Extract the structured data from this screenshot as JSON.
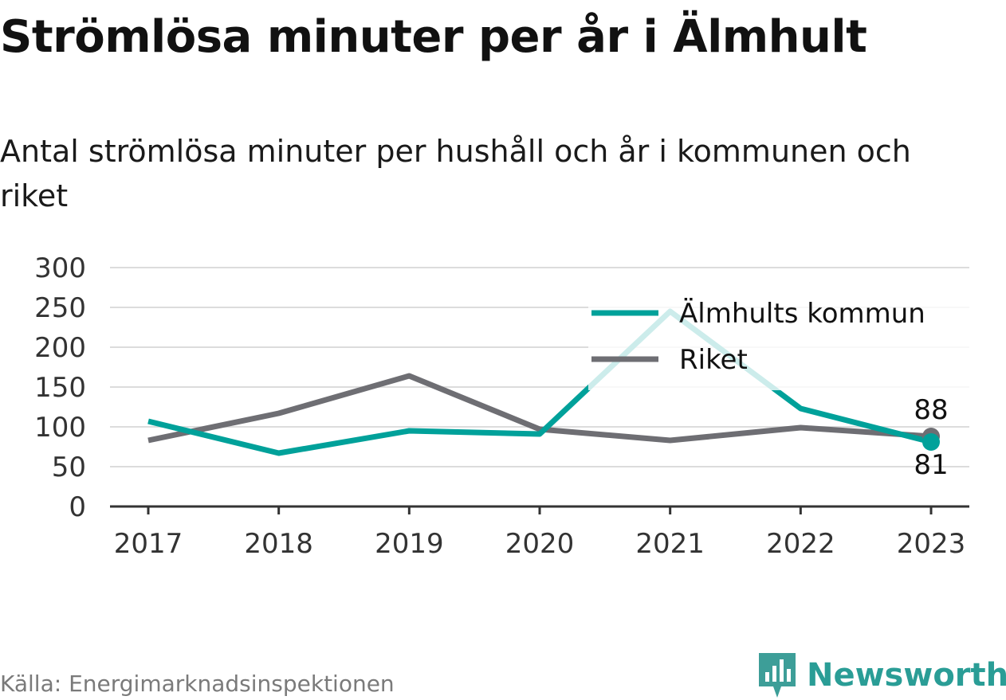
{
  "title": "Strömlösa minuter per år i Älmhult",
  "subtitle": "Antal strömlösa minuter per hushåll och år i kommunen och riket",
  "source": "Källa: Energimarknadsinspektionen",
  "brand": {
    "name": "Newsworthy",
    "icon": "newsworthy-logo-icon",
    "color": "#3d9e98"
  },
  "chart_data": {
    "type": "line",
    "categories": [
      "2017",
      "2018",
      "2019",
      "2020",
      "2021",
      "2022",
      "2023"
    ],
    "series": [
      {
        "name": "Älmhults kommun",
        "color": "#00a19a",
        "values": [
          107,
          67,
          95,
          91,
          245,
          123,
          81
        ]
      },
      {
        "name": "Riket",
        "color": "#6e6e73",
        "values": [
          83,
          117,
          164,
          97,
          83,
          99,
          88
        ]
      }
    ],
    "y_ticks": [
      "0",
      "50",
      "100",
      "150",
      "200",
      "250",
      "300"
    ],
    "ylim": [
      0,
      300
    ],
    "grid": true,
    "legend_position": "top-right",
    "end_labels": {
      "Älmhults kommun": "81",
      "Riket": "88"
    }
  }
}
